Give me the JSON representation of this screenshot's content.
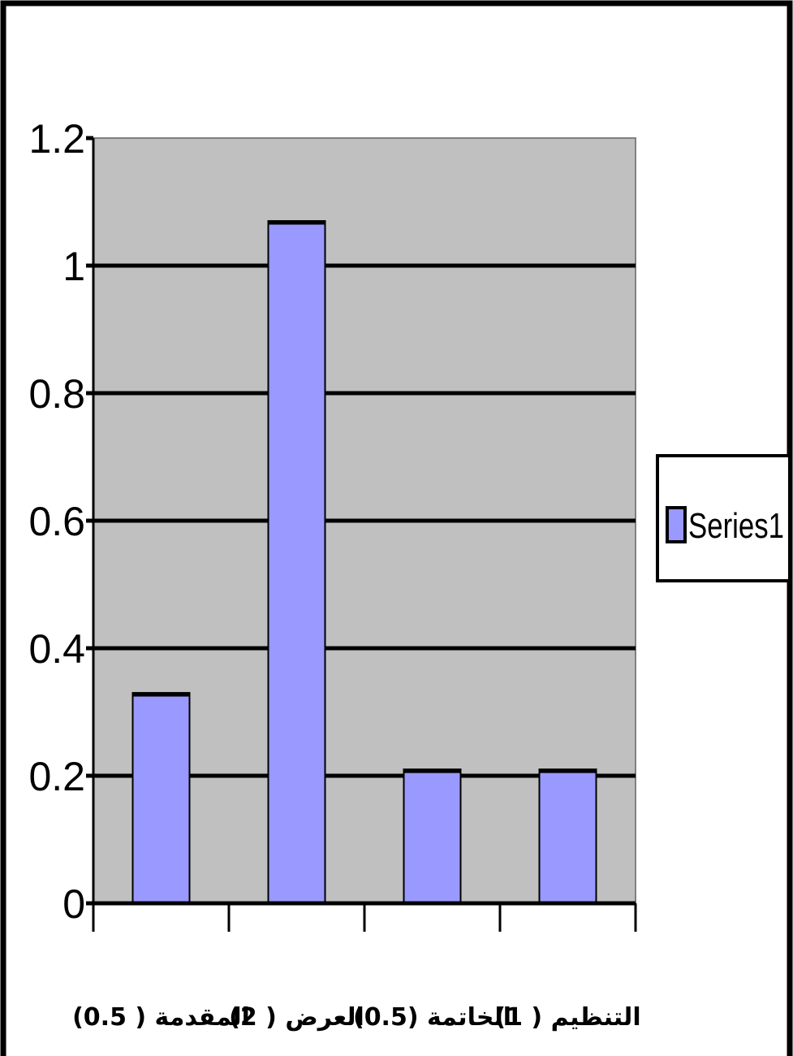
{
  "chart_data": {
    "type": "bar",
    "categories": [
      "المقدمة ( 0.5)",
      "العرض ( 2)",
      "الخاتمة (0.5)",
      "التنظيم ( 1)"
    ],
    "series": [
      {
        "name": "Series1",
        "values": [
          0.33,
          1.07,
          0.21,
          0.21
        ],
        "color": "#9999ff"
      }
    ],
    "yticks": [
      "0",
      "0.2",
      "0.4",
      "0.6",
      "0.8",
      "1",
      "1.2"
    ],
    "ylim": [
      0,
      1.2
    ],
    "grid": true,
    "legend_position": "right",
    "plot_background": "#c0c0c0",
    "bar_color": "#9999ff"
  }
}
